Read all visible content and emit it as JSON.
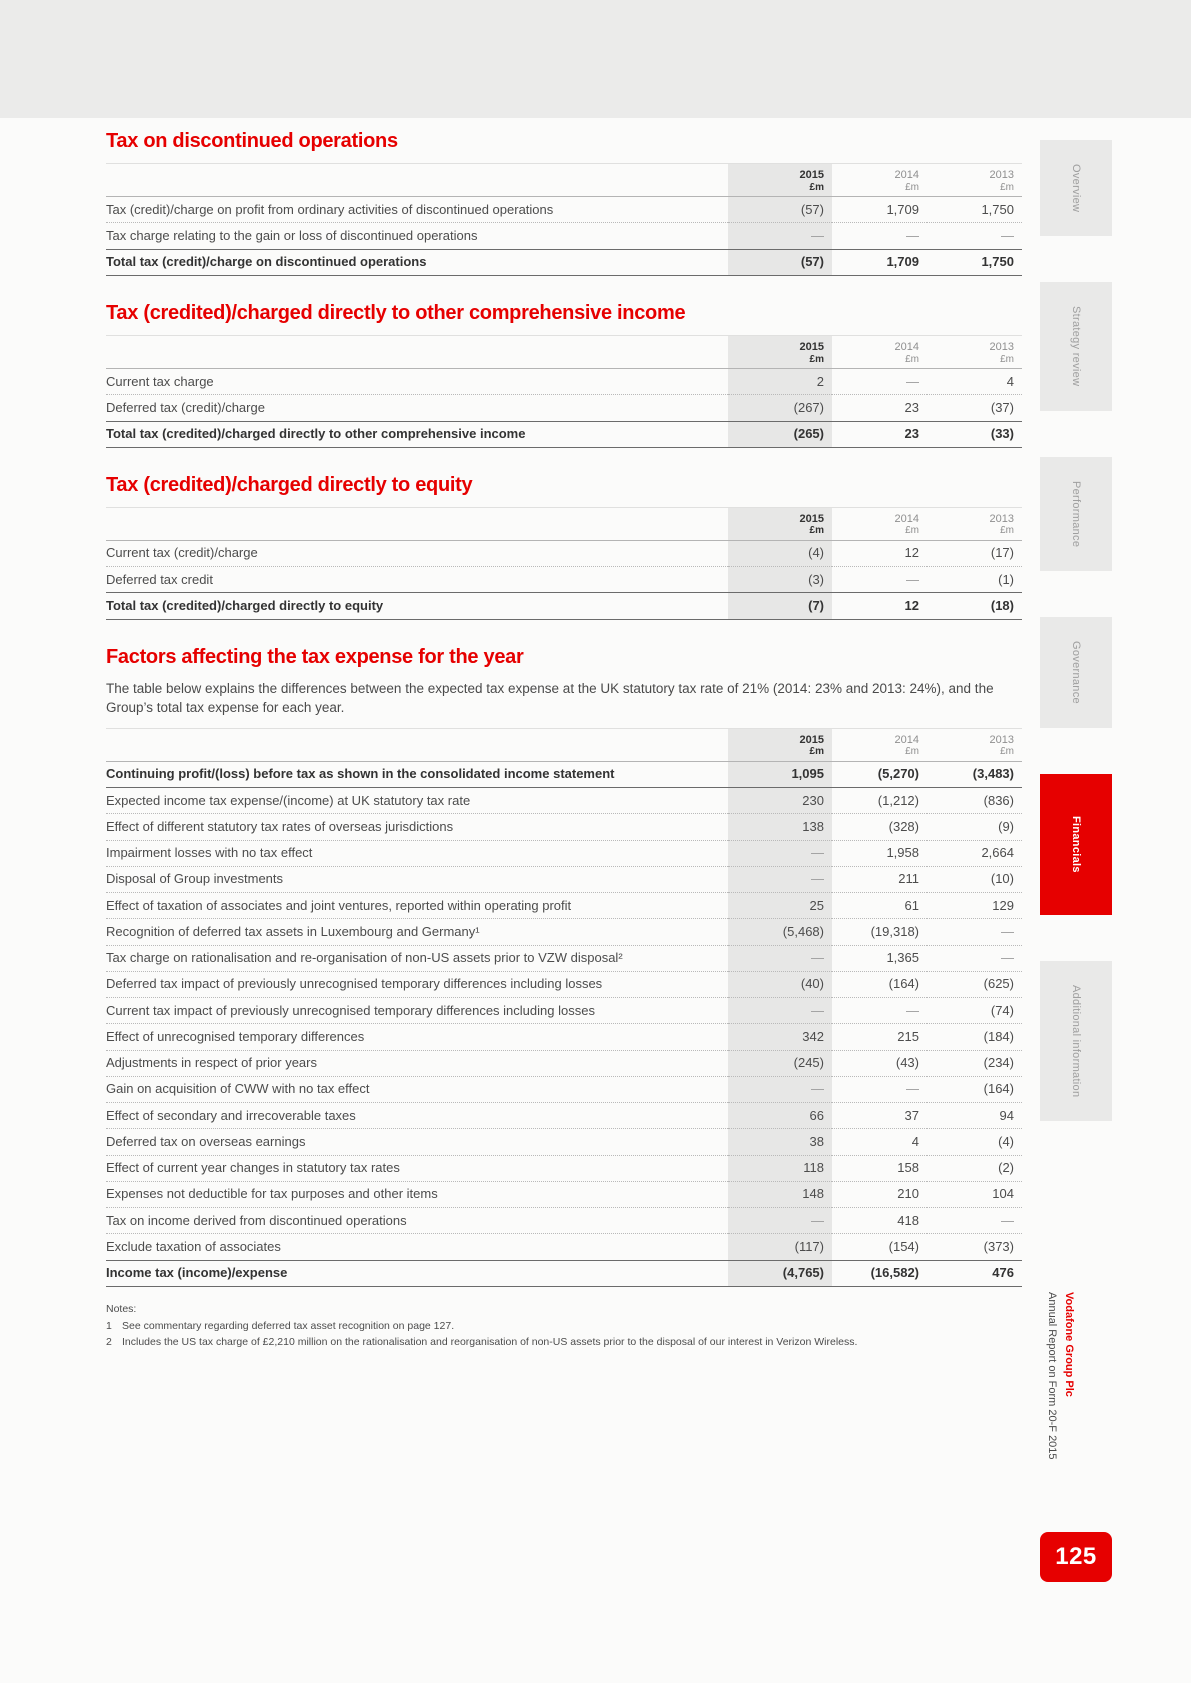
{
  "page": {
    "number": "125",
    "brand": "Vodafone Group Plc",
    "report_title": "Annual Report on Form 20-F 2015"
  },
  "colors": {
    "accent_red": "#e60000",
    "highlight_gray": "#e7e7e6"
  },
  "sidebar": {
    "tabs": [
      {
        "label": "Overview",
        "active": false
      },
      {
        "label": "Strategy review",
        "active": false
      },
      {
        "label": "Performance",
        "active": false
      },
      {
        "label": "Governance",
        "active": false
      },
      {
        "label": "Financials",
        "active": true
      },
      {
        "label": "Additional information",
        "active": false
      }
    ]
  },
  "sections": [
    {
      "title": "Tax on discontinued operations",
      "table": {
        "columns": [
          {
            "year": "2015",
            "unit": "£m"
          },
          {
            "year": "2014",
            "unit": "£m"
          },
          {
            "year": "2013",
            "unit": "£m"
          }
        ],
        "rows": [
          {
            "label": "Tax (credit)/charge on profit from ordinary activities of discontinued operations",
            "values": [
              "(57)",
              "1,709",
              "1,750"
            ],
            "bold": false
          },
          {
            "label": "Tax charge relating to the gain or loss of discontinued operations",
            "values": [
              "—",
              "—",
              "—"
            ],
            "bold": false
          },
          {
            "label": "Total tax (credit)/charge on discontinued operations",
            "values": [
              "(57)",
              "1,709",
              "1,750"
            ],
            "bold": true
          }
        ]
      }
    },
    {
      "title": "Tax (credited)/charged directly to other comprehensive income",
      "table": {
        "columns": [
          {
            "year": "2015",
            "unit": "£m"
          },
          {
            "year": "2014",
            "unit": "£m"
          },
          {
            "year": "2013",
            "unit": "£m"
          }
        ],
        "rows": [
          {
            "label": "Current tax charge",
            "values": [
              "2",
              "—",
              "4"
            ],
            "bold": false
          },
          {
            "label": "Deferred tax (credit)/charge",
            "values": [
              "(267)",
              "23",
              "(37)"
            ],
            "bold": false
          },
          {
            "label": "Total tax (credited)/charged directly to other comprehensive income",
            "values": [
              "(265)",
              "23",
              "(33)"
            ],
            "bold": true
          }
        ]
      }
    },
    {
      "title": "Tax (credited)/charged directly to equity",
      "table": {
        "columns": [
          {
            "year": "2015",
            "unit": "£m"
          },
          {
            "year": "2014",
            "unit": "£m"
          },
          {
            "year": "2013",
            "unit": "£m"
          }
        ],
        "rows": [
          {
            "label": "Current tax (credit)/charge",
            "values": [
              "(4)",
              "12",
              "(17)"
            ],
            "bold": false
          },
          {
            "label": "Deferred tax credit",
            "values": [
              "(3)",
              "—",
              "(1)"
            ],
            "bold": false
          },
          {
            "label": "Total tax (credited)/charged directly to equity",
            "values": [
              "(7)",
              "12",
              "(18)"
            ],
            "bold": true
          }
        ]
      }
    },
    {
      "title": "Factors affecting the tax expense for the year",
      "intro": "The table below explains the differences between the expected tax expense at the UK statutory tax rate of 21% (2014: 23% and 2013: 24%), and the Group’s total tax expense for each year.",
      "table": {
        "columns": [
          {
            "year": "2015",
            "unit": "£m"
          },
          {
            "year": "2014",
            "unit": "£m"
          },
          {
            "year": "2013",
            "unit": "£m"
          }
        ],
        "rows": [
          {
            "label": "Continuing profit/(loss) before tax as shown in the consolidated income statement",
            "values": [
              "1,095",
              "(5,270)",
              "(3,483)"
            ],
            "bold": true
          },
          {
            "label": "Expected income tax expense/(income) at UK statutory tax rate",
            "values": [
              "230",
              "(1,212)",
              "(836)"
            ],
            "bold": false
          },
          {
            "label": "Effect of different statutory tax rates of overseas jurisdictions",
            "values": [
              "138",
              "(328)",
              "(9)"
            ],
            "bold": false
          },
          {
            "label": "Impairment losses with no tax effect",
            "values": [
              "—",
              "1,958",
              "2,664"
            ],
            "bold": false
          },
          {
            "label": "Disposal of Group investments",
            "values": [
              "—",
              "211",
              "(10)"
            ],
            "bold": false
          },
          {
            "label": "Effect of taxation of associates and joint ventures, reported within operating profit",
            "values": [
              "25",
              "61",
              "129"
            ],
            "bold": false
          },
          {
            "label": "Recognition of deferred tax assets in Luxembourg and Germany¹",
            "values": [
              "(5,468)",
              "(19,318)",
              "—"
            ],
            "bold": false
          },
          {
            "label": "Tax charge on rationalisation and re-organisation of non-US assets prior to VZW disposal²",
            "values": [
              "—",
              "1,365",
              "—"
            ],
            "bold": false
          },
          {
            "label": "Deferred tax impact of previously unrecognised temporary differences including losses",
            "values": [
              "(40)",
              "(164)",
              "(625)"
            ],
            "bold": false
          },
          {
            "label": "Current tax impact of previously unrecognised temporary differences including losses",
            "values": [
              "—",
              "—",
              "(74)"
            ],
            "bold": false
          },
          {
            "label": "Effect of unrecognised temporary differences",
            "values": [
              "342",
              "215",
              "(184)"
            ],
            "bold": false
          },
          {
            "label": "Adjustments in respect of prior years",
            "values": [
              "(245)",
              "(43)",
              "(234)"
            ],
            "bold": false
          },
          {
            "label": "Gain on acquisition of CWW with no tax effect",
            "values": [
              "—",
              "—",
              "(164)"
            ],
            "bold": false
          },
          {
            "label": "Effect of secondary and irrecoverable taxes",
            "values": [
              "66",
              "37",
              "94"
            ],
            "bold": false
          },
          {
            "label": "Deferred tax on overseas earnings",
            "values": [
              "38",
              "4",
              "(4)"
            ],
            "bold": false
          },
          {
            "label": "Effect of current year changes in statutory tax rates",
            "values": [
              "118",
              "158",
              "(2)"
            ],
            "bold": false
          },
          {
            "label": "Expenses not deductible for tax purposes and other items",
            "values": [
              "148",
              "210",
              "104"
            ],
            "bold": false
          },
          {
            "label": "Tax on income derived from discontinued operations",
            "values": [
              "—",
              "418",
              "—"
            ],
            "bold": false
          },
          {
            "label": "Exclude taxation of associates",
            "values": [
              "(117)",
              "(154)",
              "(373)"
            ],
            "bold": false
          },
          {
            "label": "Income tax (income)/expense",
            "values": [
              "(4,765)",
              "(16,582)",
              "476"
            ],
            "bold": true
          }
        ]
      }
    }
  ],
  "notes": {
    "title": "Notes:",
    "items": [
      {
        "num": "1",
        "text": "See commentary regarding deferred tax asset recognition on page 127."
      },
      {
        "num": "2",
        "text": "Includes the US tax charge of £2,210 million on the rationalisation and reorganisation of non-US assets prior to the disposal of our interest in Verizon Wireless."
      }
    ]
  }
}
